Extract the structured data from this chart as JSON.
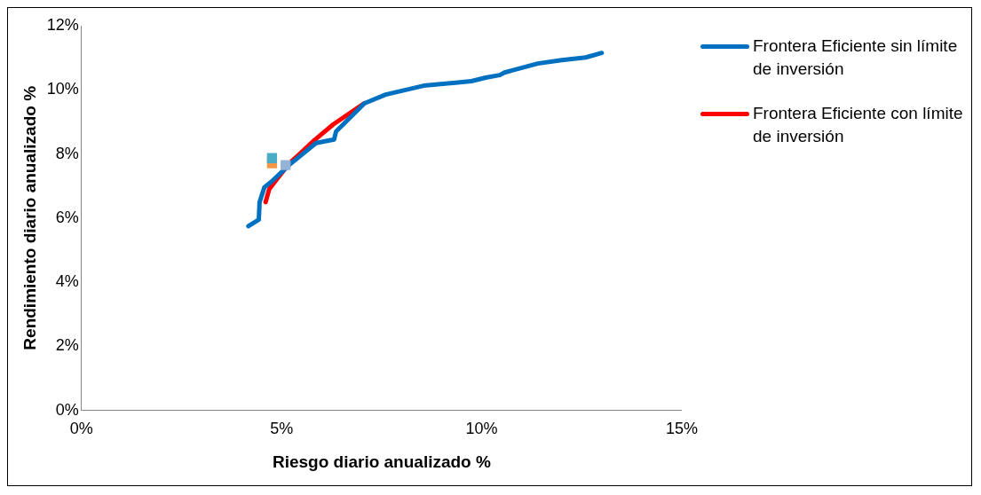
{
  "chart_data": {
    "type": "line",
    "xlabel": "Riesgo diario anualizado %",
    "ylabel": "Rendimiento diario anualizado %",
    "xlim": [
      0,
      15
    ],
    "xticks": [
      {
        "value": 0,
        "label": "0%"
      },
      {
        "value": 5,
        "label": "5%"
      },
      {
        "value": 10,
        "label": "10%"
      },
      {
        "value": 15,
        "label": "15%"
      }
    ],
    "ylim": [
      0,
      12
    ],
    "yticks": [
      {
        "value": 0,
        "label": "0%"
      },
      {
        "value": 2,
        "label": "2%"
      },
      {
        "value": 4,
        "label": "4%"
      },
      {
        "value": 6,
        "label": "6%"
      },
      {
        "value": 8,
        "label": "8%"
      },
      {
        "value": 10,
        "label": "10%"
      },
      {
        "value": 12,
        "label": "12%"
      }
    ],
    "grid": false,
    "legend": "right",
    "line_style": "solid",
    "series": [
      {
        "name": "Frontera Eficiente sin límite de inversión",
        "color": "#0070c0",
        "marker": "none",
        "x": [
          4.17,
          4.43,
          4.45,
          4.57,
          4.74,
          5.21,
          5.86,
          6.31,
          6.36,
          7.07,
          7.6,
          8.55,
          9.74,
          10.1,
          10.45,
          10.57,
          10.74,
          11.4,
          12.0,
          12.6,
          13.0
        ],
        "values": [
          5.75,
          5.95,
          6.5,
          6.96,
          7.13,
          7.68,
          8.34,
          8.45,
          8.7,
          9.58,
          9.85,
          10.13,
          10.27,
          10.38,
          10.46,
          10.54,
          10.6,
          10.82,
          10.93,
          11.01,
          11.15
        ]
      },
      {
        "name": "Frontera Eficiente con límite de inversión",
        "color": "#ff0000",
        "marker": "none",
        "x": [
          4.6,
          4.69,
          4.86,
          5.21,
          5.45,
          5.81,
          6.29,
          7.07
        ],
        "values": [
          6.5,
          6.9,
          7.18,
          7.73,
          8.0,
          8.42,
          8.92,
          9.58
        ]
      },
      {
        "type": "scatter",
        "color": "#4bacc6",
        "marker": "square",
        "x": [
          4.76
        ],
        "values": [
          7.87
        ]
      },
      {
        "type": "scatter",
        "color": "#f79646",
        "marker": "square",
        "x": [
          4.76
        ],
        "values": [
          7.71
        ]
      },
      {
        "type": "scatter",
        "color": "#95b3d7",
        "marker": "square",
        "x": [
          5.1
        ],
        "values": [
          7.65
        ]
      }
    ]
  }
}
